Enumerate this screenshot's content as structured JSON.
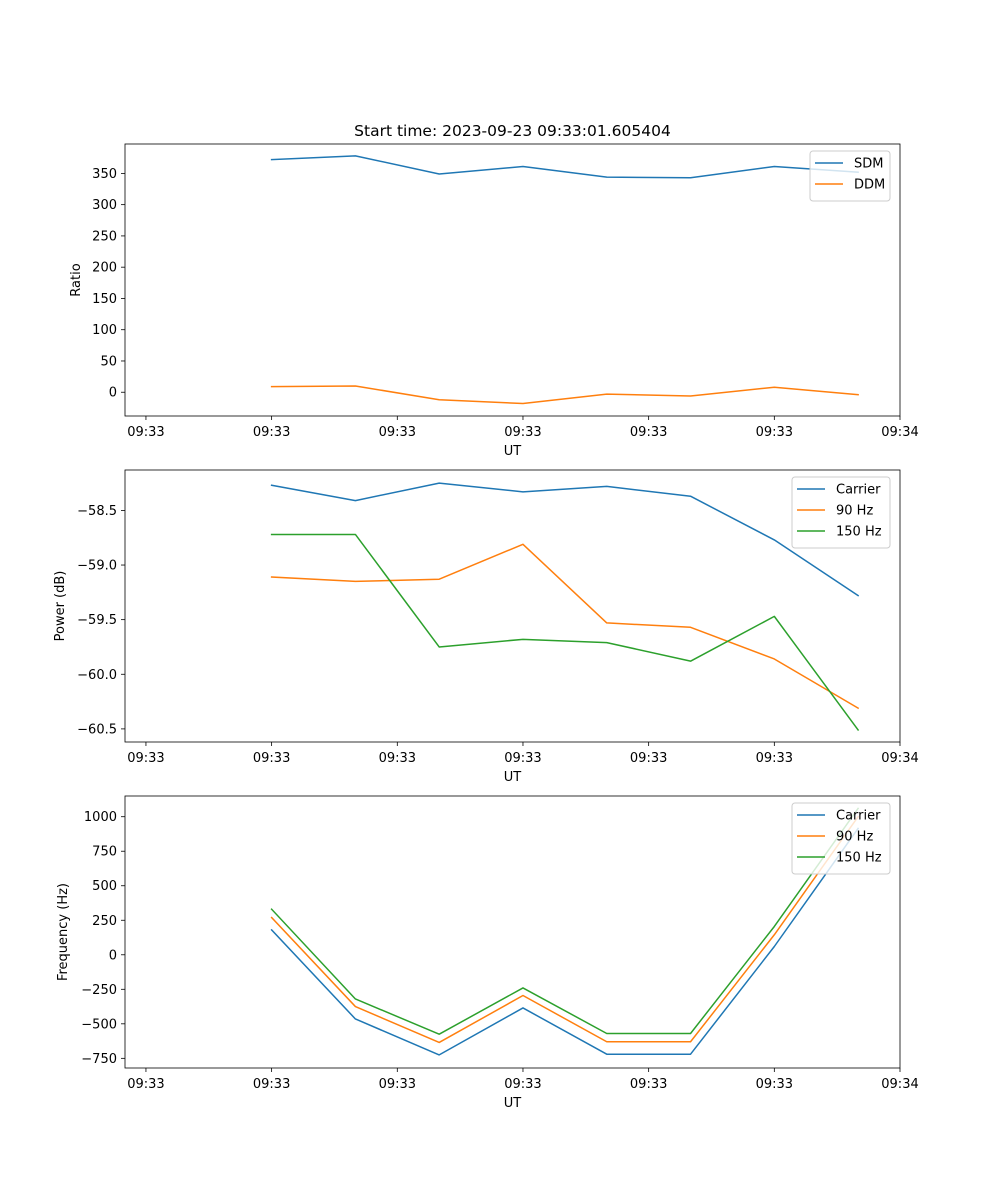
{
  "figure_title": "Start time: 2023-09-23 09:33:01.605404",
  "chart_data": [
    {
      "type": "line",
      "title": "Start time: 2023-09-23 09:33:01.605404",
      "xlabel": "UT",
      "ylabel": "Ratio",
      "x": [
        1,
        2,
        3,
        4,
        5,
        6,
        7,
        8
      ],
      "x_range": [
        -0.75,
        8.5
      ],
      "x_ticks": [
        -0.5,
        1.0,
        2.5,
        4.0,
        5.5,
        7.0,
        8.5
      ],
      "x_tick_labels": [
        "09:33",
        "09:33",
        "09:33",
        "09:33",
        "09:33",
        "09:33",
        "09:34"
      ],
      "ylim": [
        -38,
        397
      ],
      "y_ticks": [
        0,
        50,
        100,
        150,
        200,
        250,
        300,
        350
      ],
      "y_tick_labels": [
        "0",
        "50",
        "100",
        "150",
        "200",
        "250",
        "300",
        "350"
      ],
      "legend_position": "top-right",
      "series": [
        {
          "name": "SDM",
          "color": "#1f77b4",
          "values": [
            372,
            378,
            349,
            361,
            344,
            343,
            361,
            352
          ]
        },
        {
          "name": "DDM",
          "color": "#ff7f0e",
          "values": [
            9,
            10,
            -12,
            -18,
            -3,
            -6,
            8,
            -4
          ]
        }
      ]
    },
    {
      "type": "line",
      "title": "",
      "xlabel": "UT",
      "ylabel": "Power (dB)",
      "x": [
        1,
        2,
        3,
        4,
        5,
        6,
        7,
        8
      ],
      "x_range": [
        -0.75,
        8.5
      ],
      "x_ticks": [
        -0.5,
        1.0,
        2.5,
        4.0,
        5.5,
        7.0,
        8.5
      ],
      "x_tick_labels": [
        "09:33",
        "09:33",
        "09:33",
        "09:33",
        "09:33",
        "09:33",
        "09:34"
      ],
      "ylim": [
        -60.62,
        -58.13
      ],
      "y_ticks": [
        -60.5,
        -60.0,
        -59.5,
        -59.0,
        -58.5
      ],
      "y_tick_labels": [
        "−60.5",
        "−60.0",
        "−59.5",
        "−59.0",
        "−58.5"
      ],
      "legend_position": "top-right",
      "series": [
        {
          "name": "Carrier",
          "color": "#1f77b4",
          "values": [
            -58.27,
            -58.41,
            -58.25,
            -58.33,
            -58.28,
            -58.37,
            -58.77,
            -59.28
          ]
        },
        {
          "name": "90 Hz",
          "color": "#ff7f0e",
          "values": [
            -59.11,
            -59.15,
            -59.13,
            -58.81,
            -59.53,
            -59.57,
            -59.86,
            -60.31
          ]
        },
        {
          "name": "150 Hz",
          "color": "#2ca02c",
          "values": [
            -58.72,
            -58.72,
            -59.75,
            -59.68,
            -59.71,
            -59.88,
            -59.47,
            -60.51
          ]
        }
      ]
    },
    {
      "type": "line",
      "title": "",
      "xlabel": "UT",
      "ylabel": "Frequency (Hz)",
      "x": [
        1,
        2,
        3,
        4,
        5,
        6,
        7,
        8
      ],
      "x_range": [
        -0.75,
        8.5
      ],
      "x_ticks": [
        -0.5,
        1.0,
        2.5,
        4.0,
        5.5,
        7.0,
        8.5
      ],
      "x_tick_labels": [
        "09:33",
        "09:33",
        "09:33",
        "09:33",
        "09:33",
        "09:33",
        "09:34"
      ],
      "ylim": [
        -820,
        1150
      ],
      "y_ticks": [
        -750,
        -500,
        -250,
        0,
        250,
        500,
        750,
        1000
      ],
      "y_tick_labels": [
        "−750",
        "−500",
        "−250",
        "0",
        "250",
        "500",
        "750",
        "1000"
      ],
      "legend_position": "top-right",
      "series": [
        {
          "name": "Carrier",
          "color": "#1f77b4",
          "values": [
            180,
            -465,
            -725,
            -385,
            -720,
            -720,
            60,
            915
          ]
        },
        {
          "name": "90 Hz",
          "color": "#ff7f0e",
          "values": [
            270,
            -375,
            -635,
            -295,
            -630,
            -630,
            145,
            1000
          ]
        },
        {
          "name": "150 Hz",
          "color": "#2ca02c",
          "values": [
            330,
            -320,
            -575,
            -240,
            -570,
            -570,
            205,
            1060
          ]
        }
      ]
    }
  ]
}
